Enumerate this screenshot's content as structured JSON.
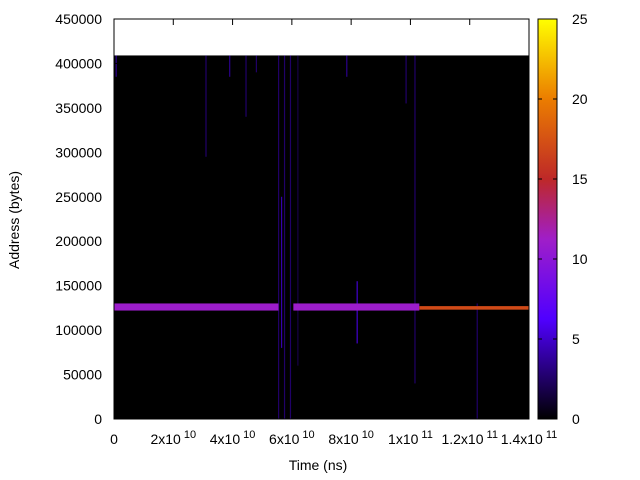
{
  "chart_data": {
    "type": "heatmap",
    "title": "",
    "xlabel": "Time (ns)",
    "ylabel": "Address (bytes)",
    "xlim": [
      0,
      140000000000
    ],
    "ylim": [
      0,
      450000
    ],
    "data_extent": {
      "x": [
        0,
        140000000000
      ],
      "y": [
        0,
        409000
      ]
    },
    "x_ticks": [
      {
        "value": 0,
        "mantissa": "0",
        "exp": ""
      },
      {
        "value": 20000000000,
        "mantissa": "2x10",
        "exp": "10"
      },
      {
        "value": 40000000000,
        "mantissa": "4x10",
        "exp": "10"
      },
      {
        "value": 60000000000,
        "mantissa": "6x10",
        "exp": "10"
      },
      {
        "value": 80000000000,
        "mantissa": "8x10",
        "exp": "10"
      },
      {
        "value": 100000000000,
        "mantissa": "1x10",
        "exp": "11"
      },
      {
        "value": 120000000000,
        "mantissa": "1.2x10",
        "exp": "11"
      },
      {
        "value": 140000000000,
        "mantissa": "1.4x10",
        "exp": "11"
      }
    ],
    "y_ticks": [
      {
        "value": 0,
        "label": "0"
      },
      {
        "value": 50000,
        "label": "50000"
      },
      {
        "value": 100000,
        "label": "100000"
      },
      {
        "value": 150000,
        "label": "150000"
      },
      {
        "value": 200000,
        "label": "200000"
      },
      {
        "value": 250000,
        "label": "250000"
      },
      {
        "value": 300000,
        "label": "300000"
      },
      {
        "value": 350000,
        "label": "350000"
      },
      {
        "value": 400000,
        "label": "400000"
      },
      {
        "value": 450000,
        "label": "450000"
      }
    ],
    "colorbar": {
      "range": [
        0,
        25
      ],
      "ticks": [
        {
          "value": 0,
          "label": "0"
        },
        {
          "value": 5,
          "label": "5"
        },
        {
          "value": 10,
          "label": "10"
        },
        {
          "value": 15,
          "label": "15"
        },
        {
          "value": 20,
          "label": "20"
        },
        {
          "value": 25,
          "label": "25"
        }
      ],
      "palette": "black-blue-purple-red-orange-yellow"
    },
    "background_value": 0,
    "bands": [
      {
        "x0": 0,
        "x1": 55500000000,
        "y0": 122000,
        "y1": 130000,
        "value": 11
      },
      {
        "x0": 60500000000,
        "x1": 103000000000,
        "y0": 122000,
        "y1": 130000,
        "value": 11
      },
      {
        "x0": 103000000000,
        "x1": 140000000000,
        "y0": 123000,
        "y1": 127000,
        "value": 17
      }
    ],
    "streaks": [
      {
        "x": 700000000,
        "y0": 385000,
        "y1": 409000,
        "value": 4
      },
      {
        "x": 31000000000,
        "y0": 295000,
        "y1": 409000,
        "value": 3
      },
      {
        "x": 39000000000,
        "y0": 385000,
        "y1": 409000,
        "value": 4
      },
      {
        "x": 44500000000,
        "y0": 340000,
        "y1": 409000,
        "value": 3
      },
      {
        "x": 48000000000,
        "y0": 390000,
        "y1": 409000,
        "value": 3
      },
      {
        "x": 55500000000,
        "y0": 0,
        "y1": 409000,
        "value": 3
      },
      {
        "x": 56500000000,
        "y0": 80000,
        "y1": 250000,
        "value": 5
      },
      {
        "x": 57500000000,
        "y0": 0,
        "y1": 409000,
        "value": 3
      },
      {
        "x": 59500000000,
        "y0": 0,
        "y1": 409000,
        "value": 3
      },
      {
        "x": 62000000000,
        "y0": 60000,
        "y1": 409000,
        "value": 2
      },
      {
        "x": 78500000000,
        "y0": 385000,
        "y1": 409000,
        "value": 4
      },
      {
        "x": 82000000000,
        "y0": 85000,
        "y1": 155000,
        "value": 6
      },
      {
        "x": 98500000000,
        "y0": 355000,
        "y1": 409000,
        "value": 3
      },
      {
        "x": 101500000000,
        "y0": 40000,
        "y1": 409000,
        "value": 3
      },
      {
        "x": 122500000000,
        "y0": 0,
        "y1": 130000,
        "value": 3
      }
    ]
  }
}
